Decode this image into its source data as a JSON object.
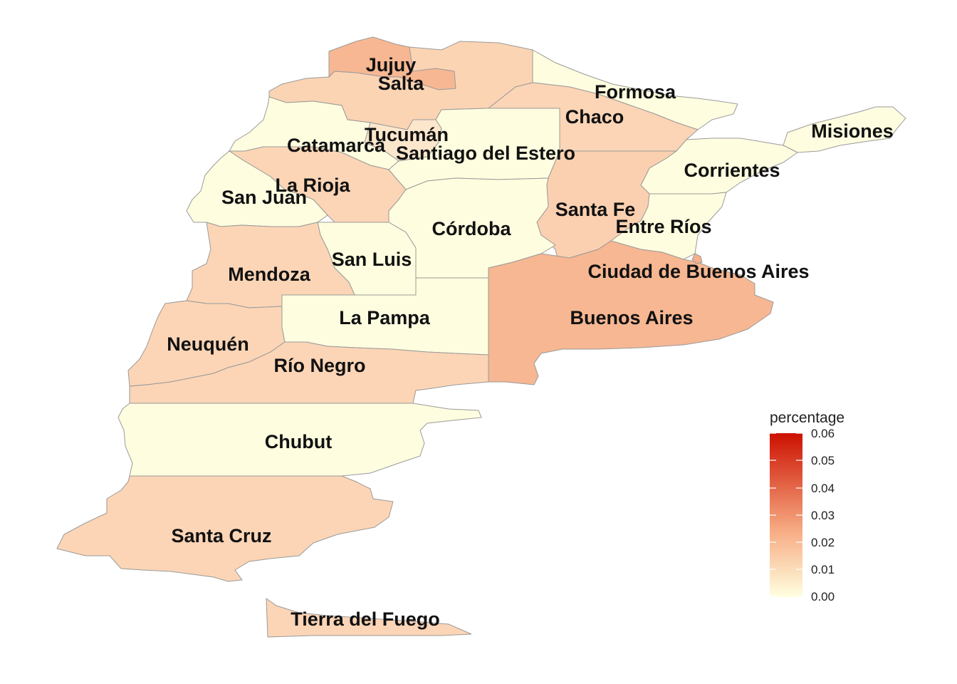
{
  "map": {
    "provinces": [
      {
        "id": "jujuy",
        "label": "Jujuy",
        "color": "#f6b792"
      },
      {
        "id": "salta",
        "label": "Salta",
        "color": "#fbd4b4"
      },
      {
        "id": "formosa",
        "label": "Formosa",
        "color": "#fffddf"
      },
      {
        "id": "chaco",
        "label": "Chaco",
        "color": "#fbd5b6"
      },
      {
        "id": "misiones",
        "label": "Misiones",
        "color": "#fffddf"
      },
      {
        "id": "tucuman",
        "label": "Tucumán",
        "color": "#fce6cc"
      },
      {
        "id": "catamarca",
        "label": "Catamarca",
        "color": "#fffddf"
      },
      {
        "id": "santiago",
        "label": "Santiago del Estero",
        "color": "#fffddf"
      },
      {
        "id": "corrientes",
        "label": "Corrientes",
        "color": "#fffddf"
      },
      {
        "id": "la-rioja",
        "label": "La Rioja",
        "color": "#fbd5b6"
      },
      {
        "id": "san-juan",
        "label": "San Juan",
        "color": "#fffddf"
      },
      {
        "id": "santa-fe",
        "label": "Santa Fe",
        "color": "#fbd0b0"
      },
      {
        "id": "cordoba",
        "label": "Córdoba",
        "color": "#fffddf"
      },
      {
        "id": "entre-rios",
        "label": "Entre Ríos",
        "color": "#fffddf"
      },
      {
        "id": "san-luis",
        "label": "San Luis",
        "color": "#fffddf"
      },
      {
        "id": "caba",
        "label": "Ciudad de Buenos Aires",
        "color": "#f6b08a"
      },
      {
        "id": "mendoza",
        "label": "Mendoza",
        "color": "#fbd5b6"
      },
      {
        "id": "la-pampa",
        "label": "La Pampa",
        "color": "#fffddf"
      },
      {
        "id": "buenos-aires",
        "label": "Buenos Aires",
        "color": "#f6b792"
      },
      {
        "id": "neuquen",
        "label": "Neuquén",
        "color": "#fbd5b6"
      },
      {
        "id": "rio-negro",
        "label": "Río Negro",
        "color": "#fbd5b6"
      },
      {
        "id": "chubut",
        "label": "Chubut",
        "color": "#fffddf"
      },
      {
        "id": "santa-cruz",
        "label": "Santa Cruz",
        "color": "#fbd5b6"
      },
      {
        "id": "tierra-del-fuego",
        "label": "Tierra del Fuego",
        "color": "#fbd5b6"
      }
    ]
  },
  "legend": {
    "title": "percentage",
    "ticks": [
      "0.06",
      "0.05",
      "0.04",
      "0.03",
      "0.02",
      "0.01",
      "0.00"
    ],
    "color_low": "#ffffe0",
    "color_mid": "#f7ad85",
    "color_high": "#cc1100"
  }
}
